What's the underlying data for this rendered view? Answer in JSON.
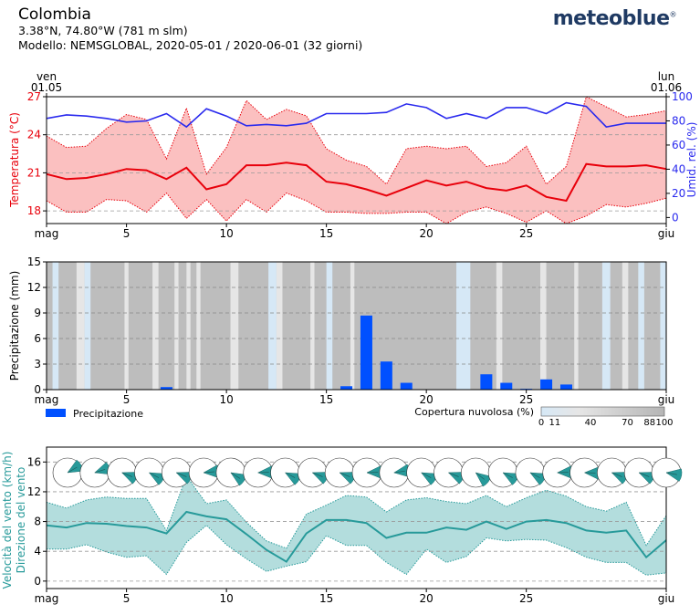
{
  "header": {
    "title": "Colombia",
    "coords": "3.38°N, 74.80°W (781 m slm)",
    "model": "Modello: NEMSGLOBAL, 2020-05-01 / 2020-06-01 (32 giorni)",
    "logo": "meteoblue",
    "logo_mark": "®"
  },
  "top_labels": {
    "left_day": "ven",
    "left_date": "01.05",
    "right_day": "lun",
    "right_date": "01.06"
  },
  "x_axis": {
    "ticks": [
      {
        "day": 1,
        "label": "mag"
      },
      {
        "day": 5,
        "label": "5"
      },
      {
        "day": 10,
        "label": "10"
      },
      {
        "day": 15,
        "label": "15"
      },
      {
        "day": 20,
        "label": "20"
      },
      {
        "day": 25,
        "label": "25"
      },
      {
        "day": 32,
        "label": "giu"
      }
    ]
  },
  "colors": {
    "temp": "#e8000b",
    "temp_band": "#fbc0c0",
    "humidity": "#2a2aee",
    "precip": "#0050ff",
    "wind": "#279a9a",
    "wind_band": "#b3dddd"
  },
  "chart_data": [
    {
      "type": "line",
      "panel": "temperature",
      "ylabel": "Temperatura (°C)",
      "y2label": "Umid. rel. (%)",
      "ylim": [
        17,
        27
      ],
      "yticks": [
        18,
        21,
        24,
        27
      ],
      "y2lim": [
        -5,
        100
      ],
      "y2ticks": [
        0,
        20,
        40,
        60,
        80,
        100
      ],
      "x": [
        1,
        2,
        3,
        4,
        5,
        6,
        7,
        8,
        9,
        10,
        11,
        12,
        13,
        14,
        15,
        16,
        17,
        18,
        19,
        20,
        21,
        22,
        23,
        24,
        25,
        26,
        27,
        28,
        29,
        30,
        31,
        32
      ],
      "series": [
        {
          "name": "temp_mean",
          "values": [
            20.9,
            20.5,
            20.6,
            20.9,
            21.3,
            21.2,
            20.5,
            21.4,
            19.7,
            20.1,
            21.6,
            21.6,
            21.8,
            21.6,
            20.3,
            20.1,
            19.7,
            19.2,
            19.8,
            20.4,
            20.0,
            20.3,
            19.8,
            19.6,
            20.0,
            19.1,
            18.8,
            21.7,
            21.5,
            21.5,
            21.6,
            21.3
          ]
        },
        {
          "name": "temp_max",
          "values": [
            23.9,
            23.0,
            23.1,
            24.5,
            25.6,
            25.2,
            22.1,
            26.1,
            20.9,
            23.0,
            26.7,
            25.2,
            26.0,
            25.5,
            22.9,
            22.0,
            21.5,
            20.1,
            22.9,
            23.1,
            22.9,
            23.1,
            21.5,
            21.8,
            23.1,
            20.1,
            21.5,
            27.0,
            26.2,
            25.4,
            25.6,
            25.9
          ]
        },
        {
          "name": "temp_min",
          "values": [
            18.8,
            17.9,
            17.9,
            18.9,
            18.8,
            17.9,
            19.4,
            17.4,
            18.9,
            17.2,
            18.9,
            17.9,
            19.4,
            18.8,
            17.9,
            17.9,
            17.8,
            17.8,
            17.9,
            17.9,
            17.0,
            17.9,
            18.3,
            17.8,
            17.1,
            18.0,
            17.0,
            17.6,
            18.5,
            18.3,
            18.6,
            19.0
          ]
        },
        {
          "name": "humidity",
          "values": [
            82,
            85,
            84,
            82,
            79,
            80,
            86,
            75,
            90,
            84,
            76,
            77,
            76,
            78,
            86,
            86,
            86,
            87,
            94,
            91,
            82,
            86,
            82,
            91,
            91,
            86,
            95,
            92,
            75,
            78,
            78,
            78
          ]
        }
      ]
    },
    {
      "type": "bar",
      "panel": "precipitation",
      "ylabel": "Precipitazione (mm)",
      "ylim": [
        0,
        15
      ],
      "yticks": [
        0,
        3,
        6,
        9,
        12,
        15
      ],
      "legend": "Precipitazione",
      "cloud_legend_title": "Copertura nuvolosa (%)",
      "cloud_legend_ticks": [
        "0",
        "11",
        "40",
        "70",
        "88",
        "100"
      ],
      "x": [
        1,
        2,
        3,
        4,
        5,
        6,
        7,
        8,
        9,
        10,
        11,
        12,
        13,
        14,
        15,
        16,
        17,
        18,
        19,
        20,
        21,
        22,
        23,
        24,
        25,
        26,
        27,
        28,
        29,
        30,
        31,
        32
      ],
      "values": [
        0,
        0,
        0,
        0,
        0,
        0,
        0.3,
        0,
        0,
        0,
        0,
        0,
        0,
        0,
        0,
        0.4,
        8.7,
        3.3,
        0.8,
        0,
        0,
        0,
        1.8,
        0.8,
        0.1,
        1.2,
        0.6,
        0,
        0,
        0,
        0,
        0
      ]
    },
    {
      "type": "line",
      "panel": "wind",
      "ylabel": "Velocità del vento (km/h)",
      "ylabel2": "Direzione del vento",
      "ylim": [
        -1,
        18
      ],
      "yticks": [
        0,
        4,
        8,
        12,
        16
      ],
      "x": [
        1,
        2,
        3,
        4,
        5,
        6,
        7,
        8,
        9,
        10,
        11,
        12,
        13,
        14,
        15,
        16,
        17,
        18,
        19,
        20,
        21,
        22,
        23,
        24,
        25,
        26,
        27,
        28,
        29,
        30,
        31,
        32
      ],
      "series": [
        {
          "name": "wind_mean",
          "values": [
            7.5,
            7.2,
            7.8,
            7.7,
            7.4,
            7.2,
            6.4,
            9.3,
            8.7,
            8.3,
            6.3,
            4.2,
            2.6,
            6.4,
            8.2,
            8.2,
            7.8,
            5.8,
            6.5,
            6.5,
            7.2,
            6.9,
            8.0,
            7.0,
            8.0,
            8.2,
            7.8,
            6.8,
            6.5,
            6.8,
            3.2,
            5.5
          ]
        },
        {
          "name": "wind_max",
          "values": [
            10.6,
            9.8,
            10.9,
            11.3,
            11.1,
            11.1,
            6.8,
            14.1,
            10.4,
            10.9,
            7.9,
            5.4,
            4.4,
            9.0,
            10.2,
            11.5,
            11.3,
            9.3,
            10.9,
            11.2,
            10.7,
            10.4,
            11.5,
            10.0,
            11.2,
            12.2,
            11.4,
            10.0,
            9.4,
            10.6,
            4.8,
            8.8
          ]
        },
        {
          "name": "wind_min",
          "values": [
            4.3,
            4.3,
            4.9,
            3.9,
            3.2,
            3.4,
            0.9,
            5.2,
            7.5,
            4.9,
            3.0,
            1.3,
            2.0,
            2.6,
            6.1,
            4.8,
            4.8,
            2.5,
            0.9,
            4.3,
            2.5,
            3.3,
            5.8,
            5.4,
            5.6,
            5.5,
            4.5,
            3.2,
            2.5,
            2.5,
            0.8,
            1.1
          ]
        }
      ],
      "directions_deg": [
        60,
        72,
        112,
        118,
        112,
        85,
        122,
        88,
        118,
        112,
        112,
        88,
        82,
        118,
        112,
        128,
        118,
        118,
        88,
        92,
        112,
        112,
        100
      ]
    }
  ]
}
